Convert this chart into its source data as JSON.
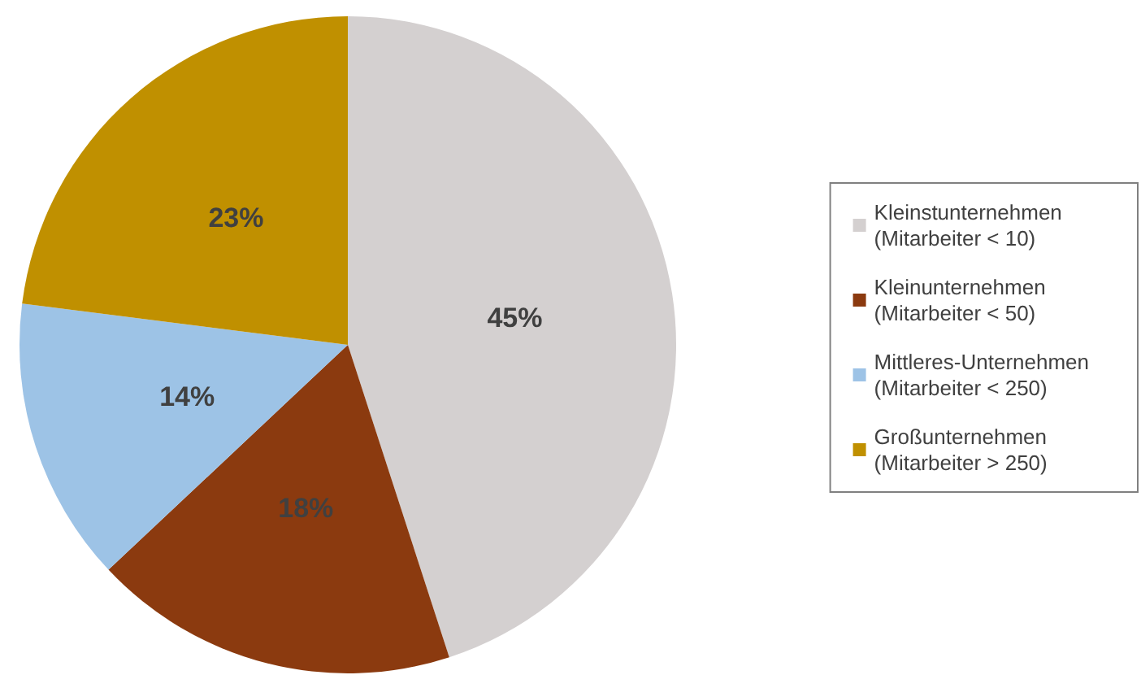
{
  "chart_data": {
    "type": "pie",
    "categories": [
      "Kleinstunternehmen\n(Mitarbeiter < 10)",
      "Kleinunternehmen\n(Mitarbeiter < 50)",
      "Mittleres-Unternehmen\n(Mitarbeiter < 250)",
      "Großunternehmen\n(Mitarbeiter > 250)"
    ],
    "values": [
      45,
      18,
      14,
      23
    ],
    "colors": [
      "#d4d0d0",
      "#8b3a0f",
      "#9dc3e6",
      "#c09000"
    ],
    "value_labels": [
      "45%",
      "18%",
      "14%",
      "23%"
    ],
    "legend": "right"
  }
}
